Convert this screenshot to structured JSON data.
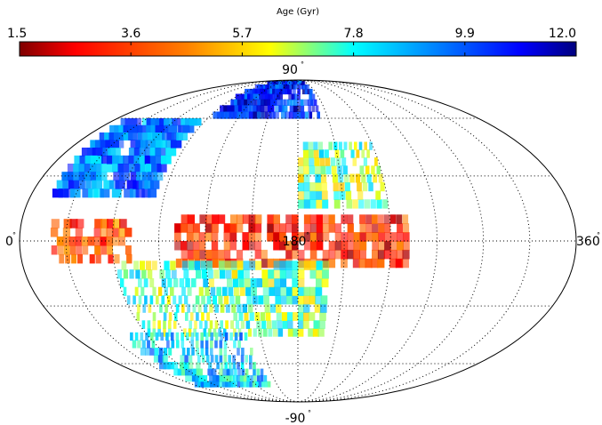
{
  "chart_data": {
    "type": "heatmap",
    "projection": "mollweide",
    "colorbar": {
      "title": "Age (Gyr)",
      "ticks": [
        "1.5",
        "3.6",
        "5.7",
        "7.8",
        "9.9",
        "12.0"
      ],
      "range": [
        1.5,
        12.0
      ],
      "colormap": [
        "#7f0000",
        "#ff0000",
        "#ff8000",
        "#ffff00",
        "#00ffff",
        "#0080ff",
        "#0000ff",
        "#00007f"
      ]
    },
    "grid": true,
    "meridian_labels": {
      "left": "0",
      "center": "180",
      "right": "360"
    },
    "parallel_labels": {
      "top": "90",
      "bottom": "-90"
    },
    "regions": [
      {
        "lon_range": [
          95,
          200
        ],
        "lat_range": [
          60,
          90
        ],
        "age": 10.5
      },
      {
        "lon_range": [
          15,
          80
        ],
        "lat_range": [
          20,
          60
        ],
        "age": 9.5
      },
      {
        "lon_range": [
          180,
          240
        ],
        "lat_range": [
          15,
          45
        ],
        "age": 7.0
      },
      {
        "lon_range": [
          100,
          250
        ],
        "lat_range": [
          -12,
          12
        ],
        "age": 3.2
      },
      {
        "lon_range": [
          20,
          70
        ],
        "lat_range": [
          -10,
          10
        ],
        "age": 3.8
      },
      {
        "lon_range": [
          60,
          200
        ],
        "lat_range": [
          -45,
          -12
        ],
        "age": 7.2
      },
      {
        "lon_range": [
          40,
          140
        ],
        "lat_range": [
          -75,
          -45
        ],
        "age": 8.5
      }
    ]
  }
}
